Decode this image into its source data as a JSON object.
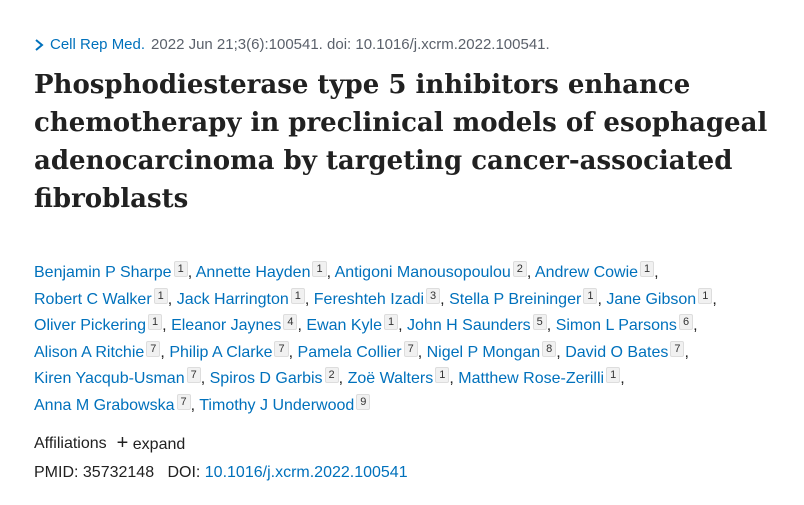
{
  "citation": {
    "journal": "Cell Rep Med.",
    "details": "2022 Jun 21;3(6):100541. doi: 10.1016/j.xcrm.2022.100541."
  },
  "title": "Phosphodiesterase type 5 inhibitors enhance chemotherapy in preclinical models of esophageal adenocarcinoma by targeting cancer-associated fibroblasts",
  "authors": {
    "separator": ",",
    "list": [
      {
        "name": "Benjamin P Sharpe",
        "aff": 1
      },
      {
        "name": "Annette Hayden",
        "aff": 1
      },
      {
        "name": "Antigoni Manousopoulou",
        "aff": 2
      },
      {
        "name": "Andrew Cowie",
        "aff": 1
      },
      {
        "name": "Robert C Walker",
        "aff": 1
      },
      {
        "name": "Jack Harrington",
        "aff": 1
      },
      {
        "name": "Fereshteh Izadi",
        "aff": 3
      },
      {
        "name": "Stella P Breininger",
        "aff": 1
      },
      {
        "name": "Jane Gibson",
        "aff": 1
      },
      {
        "name": "Oliver Pickering",
        "aff": 1
      },
      {
        "name": "Eleanor Jaynes",
        "aff": 4
      },
      {
        "name": "Ewan Kyle",
        "aff": 1
      },
      {
        "name": "John H Saunders",
        "aff": 5
      },
      {
        "name": "Simon L Parsons",
        "aff": 6
      },
      {
        "name": "Alison A Ritchie",
        "aff": 7
      },
      {
        "name": "Philip A Clarke",
        "aff": 7
      },
      {
        "name": "Pamela Collier",
        "aff": 7
      },
      {
        "name": "Nigel P Mongan",
        "aff": 8
      },
      {
        "name": "David O Bates",
        "aff": 7
      },
      {
        "name": "Kiren Yacqub-Usman",
        "aff": 7
      },
      {
        "name": "Spiros D Garbis",
        "aff": 2
      },
      {
        "name": "Zoë Walters",
        "aff": 1
      },
      {
        "name": "Matthew Rose-Zerilli",
        "aff": 1
      },
      {
        "name": "Anna M Grabowska",
        "aff": 7
      },
      {
        "name": "Timothy J Underwood",
        "aff": 9
      }
    ]
  },
  "affiliations": {
    "label": "Affiliations",
    "expand": "expand"
  },
  "ids": {
    "pmid_label": "PMID:",
    "pmid": "35732148",
    "doi_label": "DOI:",
    "doi": "10.1016/j.xcrm.2022.100541"
  }
}
